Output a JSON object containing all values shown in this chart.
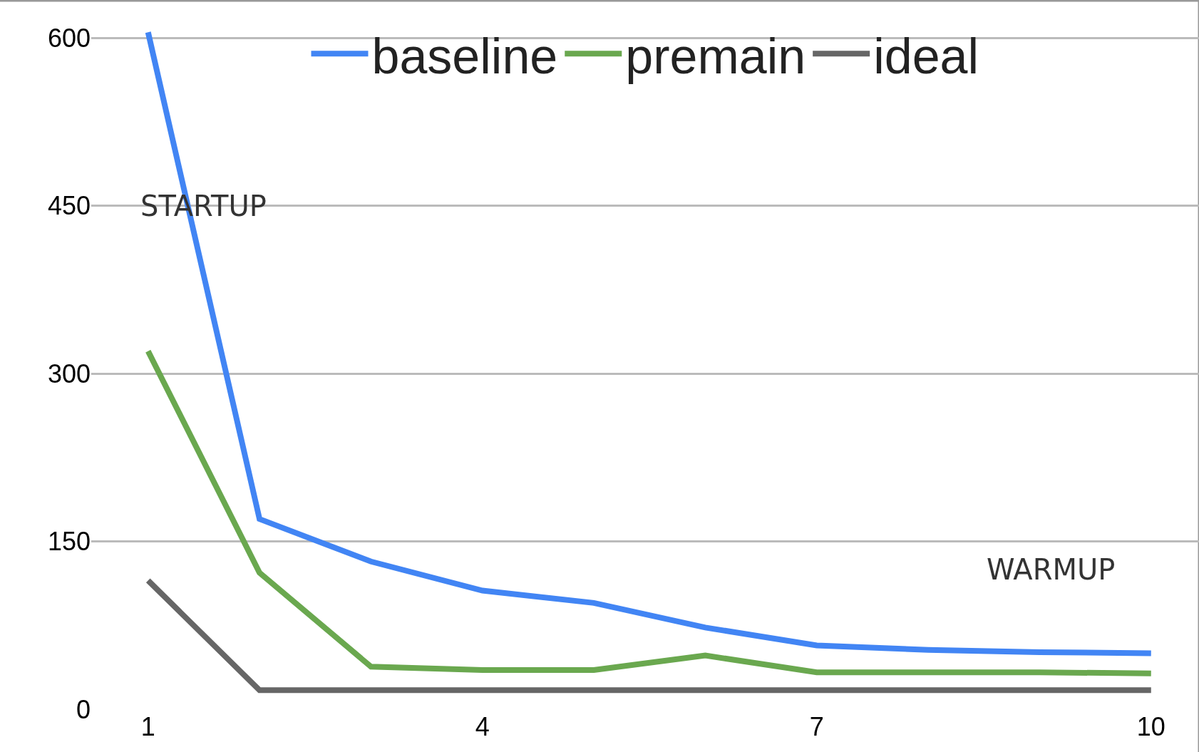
{
  "chart_data": {
    "type": "line",
    "x": [
      1,
      2,
      3,
      4,
      5,
      6,
      7,
      8,
      9,
      10
    ],
    "series": [
      {
        "name": "baseline",
        "color": "#4285f4",
        "values": [
          605,
          170,
          132,
          106,
          95,
          73,
          57,
          53,
          51,
          50
        ]
      },
      {
        "name": "premain",
        "color": "#6aa84f",
        "values": [
          320,
          122,
          38,
          35,
          35,
          48,
          33,
          33,
          33,
          32
        ]
      },
      {
        "name": "ideal",
        "color": "#666666",
        "values": [
          115,
          17,
          17,
          17,
          17,
          17,
          17,
          17,
          17,
          17
        ]
      }
    ],
    "xlim": [
      0.49,
      10.43
    ],
    "xticks": [
      1,
      4,
      7,
      10
    ],
    "ylim": [
      0,
      630
    ],
    "yticks": [
      0,
      150,
      300,
      450,
      600
    ],
    "grid": "y",
    "legend": "top",
    "marker": "none",
    "line_style": "solid",
    "annotations": [
      "STARTUP",
      "WARMUP"
    ]
  }
}
